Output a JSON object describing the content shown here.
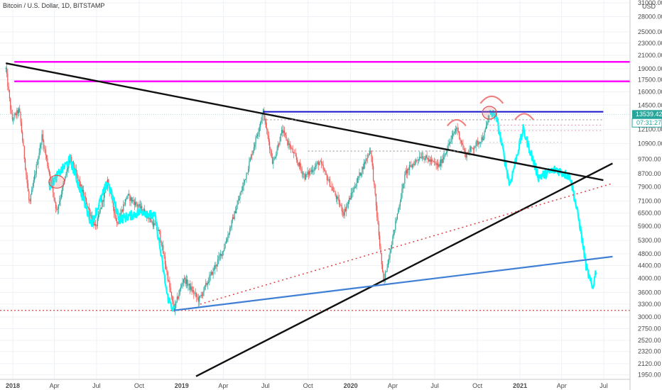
{
  "header": {
    "symbol_title": "Bitcoin / U.S. Dollar, 1D, BITSTAMP",
    "currency": "USD"
  },
  "price_tag": {
    "last_price": "13539.42",
    "countdown": "07:31:27",
    "color": "#26a69a"
  },
  "colors": {
    "candle_up": "#26a69a",
    "candle_down": "#ef5350",
    "projection": "#00ffff",
    "magenta": "#ff00ff",
    "trendline_black": "#111111",
    "trendline_blue": "#3f7fd6",
    "resistance_navy": "#1414c8",
    "red_dotted": "#e04040",
    "annotation_red": "#f08080",
    "grid": "#eef1f5"
  },
  "chart_data": {
    "type": "candlestick",
    "title": "Bitcoin / U.S. Dollar, 1D, BITSTAMP",
    "ylabel": "USD",
    "y_scale": "log",
    "ylim": [
      1800,
      33000
    ],
    "grid": true,
    "y_ticks": [
      1950,
      2120,
      2320,
      2520,
      2750,
      3000,
      3300,
      3600,
      4000,
      4400,
      4800,
      5300,
      5900,
      6500,
      7100,
      7900,
      8700,
      9700,
      10900,
      12100,
      13539.42,
      14500,
      16000,
      17500,
      19000,
      21000,
      23000,
      25000,
      28000,
      31000
    ],
    "y_tick_labels": [
      "1950.00",
      "2120.00",
      "2320.00",
      "2520.00",
      "2750.00",
      "3000.00",
      "3300.00",
      "3600.00",
      "4000.00",
      "4400.00",
      "4800.00",
      "5300.00",
      "5900.00",
      "6500.00",
      "7100.00",
      "7900.00",
      "8700.00",
      "9700.00",
      "10900.00",
      "12100.00",
      "13539.42",
      "14500.00",
      "16000.00",
      "17500.00",
      "19000.00",
      "21000.00",
      "23000.00",
      "25000.00",
      "28000.00",
      "31000.00"
    ],
    "x_ticks": [
      {
        "label": "2018",
        "date": "2018-01-01"
      },
      {
        "label": "Apr",
        "date": "2018-04-01"
      },
      {
        "label": "Jul",
        "date": "2018-07-01"
      },
      {
        "label": "Oct",
        "date": "2018-10-01"
      },
      {
        "label": "2019",
        "date": "2019-01-01"
      },
      {
        "label": "Apr",
        "date": "2019-04-01"
      },
      {
        "label": "Jul",
        "date": "2019-07-01"
      },
      {
        "label": "Oct",
        "date": "2019-10-01"
      },
      {
        "label": "2020",
        "date": "2020-01-01"
      },
      {
        "label": "Apr",
        "date": "2020-04-01"
      },
      {
        "label": "Jul",
        "date": "2020-07-01"
      },
      {
        "label": "Oct",
        "date": "2020-10-01"
      },
      {
        "label": "2021",
        "date": "2021-01-01"
      },
      {
        "label": "Apr",
        "date": "2021-04-01"
      },
      {
        "label": "Jul",
        "date": "2021-07-01"
      }
    ],
    "price_series": [
      {
        "date": "2017-12-17",
        "price": 19000
      },
      {
        "date": "2017-12-30",
        "price": 13000
      },
      {
        "date": "2018-01-15",
        "price": 14000
      },
      {
        "date": "2018-02-06",
        "price": 6900
      },
      {
        "date": "2018-03-05",
        "price": 11500
      },
      {
        "date": "2018-04-06",
        "price": 6600
      },
      {
        "date": "2018-05-05",
        "price": 9800
      },
      {
        "date": "2018-06-29",
        "price": 5800
      },
      {
        "date": "2018-07-25",
        "price": 8300
      },
      {
        "date": "2018-08-14",
        "price": 6000
      },
      {
        "date": "2018-09-05",
        "price": 7400
      },
      {
        "date": "2018-10-15",
        "price": 6500
      },
      {
        "date": "2018-11-14",
        "price": 5600
      },
      {
        "date": "2018-12-15",
        "price": 3150
      },
      {
        "date": "2019-01-05",
        "price": 4000
      },
      {
        "date": "2019-02-07",
        "price": 3400
      },
      {
        "date": "2019-04-02",
        "price": 5000
      },
      {
        "date": "2019-05-14",
        "price": 8000
      },
      {
        "date": "2019-06-26",
        "price": 13800
      },
      {
        "date": "2019-07-17",
        "price": 9400
      },
      {
        "date": "2019-08-06",
        "price": 12000
      },
      {
        "date": "2019-09-24",
        "price": 8500
      },
      {
        "date": "2019-10-26",
        "price": 9500
      },
      {
        "date": "2019-12-17",
        "price": 6500
      },
      {
        "date": "2020-02-13",
        "price": 10500
      },
      {
        "date": "2020-03-12",
        "price": 3850
      },
      {
        "date": "2020-04-29",
        "price": 8800
      },
      {
        "date": "2020-06-01",
        "price": 10000
      },
      {
        "date": "2020-07-10",
        "price": 9200
      },
      {
        "date": "2020-08-17",
        "price": 12300
      },
      {
        "date": "2020-09-05",
        "price": 10000
      },
      {
        "date": "2020-10-15",
        "price": 11500
      },
      {
        "date": "2020-10-27",
        "price": 13600
      }
    ],
    "projection_series": [
      {
        "date": "2018-03-20",
        "price": 7900
      },
      {
        "date": "2018-05-05",
        "price": 9700
      },
      {
        "date": "2018-06-20",
        "price": 6000
      },
      {
        "date": "2018-07-25",
        "price": 8200
      },
      {
        "date": "2018-08-20",
        "price": 6200
      },
      {
        "date": "2018-10-10",
        "price": 6600
      },
      {
        "date": "2018-11-05",
        "price": 6300
      },
      {
        "date": "2018-12-01",
        "price": 3500
      },
      {
        "date": "2018-12-15",
        "price": 3150
      },
      {
        "date": "2020-10-27",
        "price": 13600
      },
      {
        "date": "2020-11-10",
        "price": 13500
      },
      {
        "date": "2020-12-10",
        "price": 8000
      },
      {
        "date": "2021-01-08",
        "price": 12100
      },
      {
        "date": "2021-02-10",
        "price": 8500
      },
      {
        "date": "2021-03-20",
        "price": 9000
      },
      {
        "date": "2021-04-20",
        "price": 8500
      },
      {
        "date": "2021-05-10",
        "price": 6000
      },
      {
        "date": "2021-05-25",
        "price": 4300
      },
      {
        "date": "2021-06-07",
        "price": 3700
      },
      {
        "date": "2021-06-15",
        "price": 4300
      }
    ],
    "horizontal_lines": [
      {
        "style": "magenta",
        "price": 20000
      },
      {
        "style": "magenta",
        "price": 17300
      },
      {
        "style": "navy",
        "price": 13800
      },
      {
        "style": "red-dotted",
        "price": 3150
      }
    ],
    "trendlines": [
      {
        "style": "black",
        "from": {
          "date": "2017-12-17",
          "price": 19800
        },
        "to": {
          "date": "2021-06-30",
          "price": 8300
        }
      },
      {
        "style": "black",
        "from": {
          "date": "2019-02-01",
          "price": 1930
        },
        "to": {
          "date": "2021-07-20",
          "price": 9400
        }
      },
      {
        "style": "blue",
        "from": {
          "date": "2018-12-15",
          "price": 3150
        },
        "to": {
          "date": "2021-07-20",
          "price": 4700
        }
      },
      {
        "style": "red-dotted",
        "from": {
          "date": "2019-02-10",
          "price": 3300
        },
        "to": {
          "date": "2021-07-20",
          "price": 8100
        }
      }
    ]
  }
}
